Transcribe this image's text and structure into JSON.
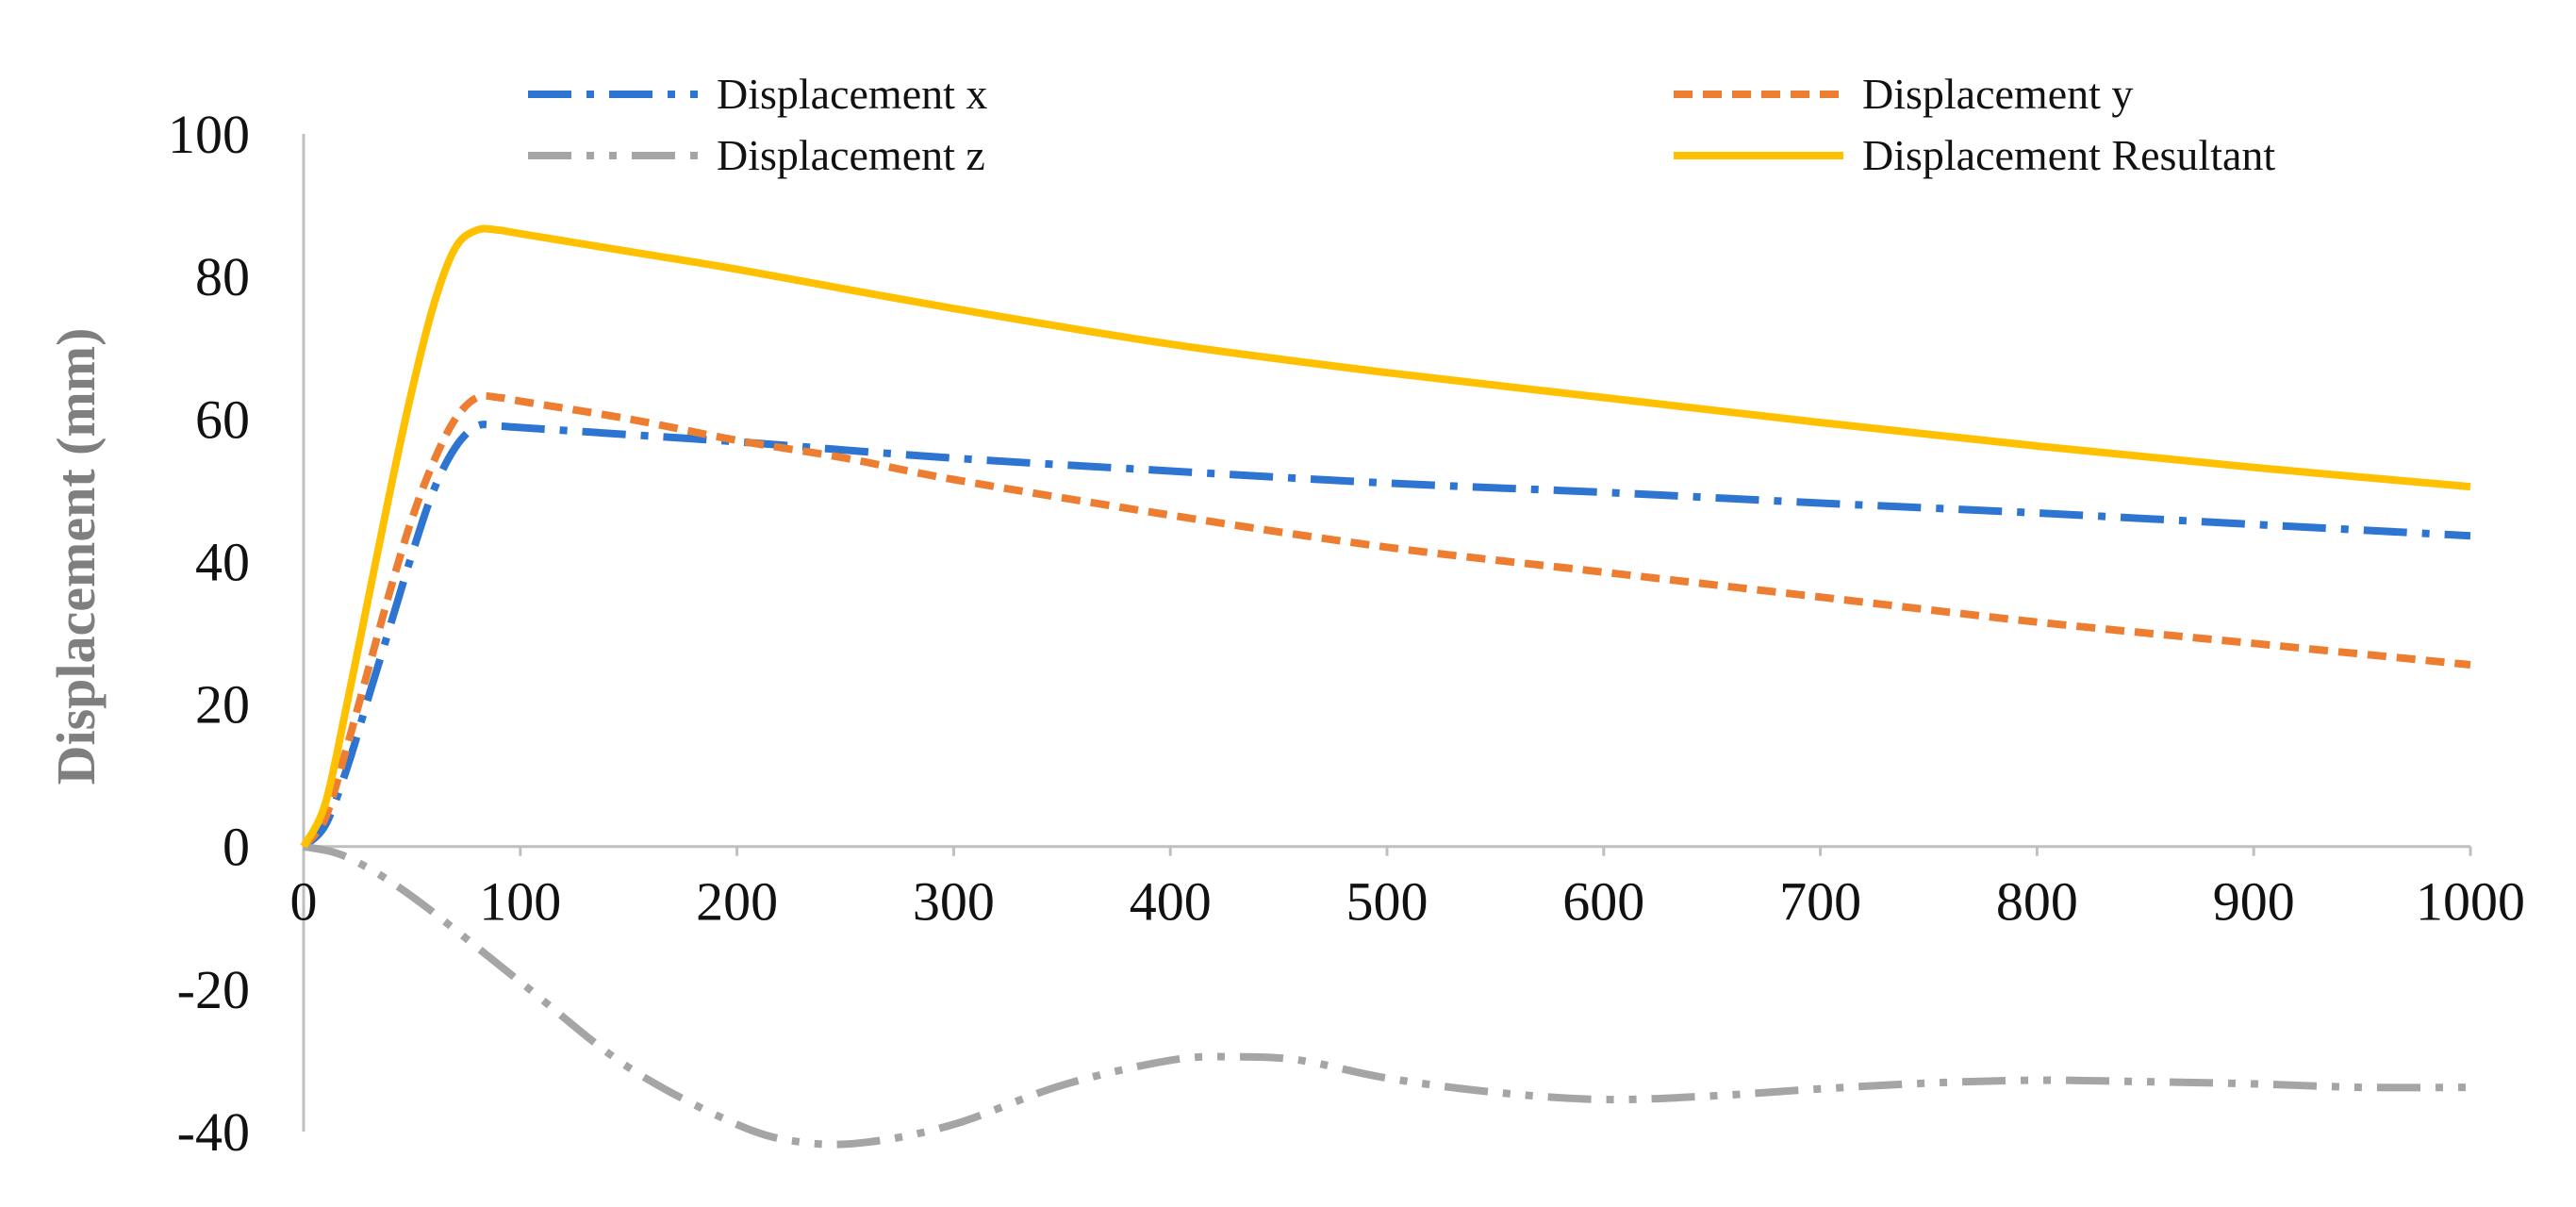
{
  "chart_data": {
    "type": "line",
    "title": "",
    "xlabel": "",
    "ylabel": "Displacement (mm)",
    "xlim": [
      0,
      1000
    ],
    "ylim": [
      -40,
      100
    ],
    "x_ticks": [
      0,
      100,
      200,
      300,
      400,
      500,
      600,
      700,
      800,
      900,
      1000
    ],
    "y_ticks": [
      -40,
      -20,
      0,
      20,
      40,
      60,
      80,
      100
    ],
    "x_tick_labels": [
      "0",
      "100",
      "200",
      "300",
      "400",
      "500",
      "600",
      "700",
      "800",
      "900",
      "1000"
    ],
    "y_tick_labels": [
      "-40",
      "-20",
      "0",
      "20",
      "40",
      "60",
      "80",
      "100"
    ],
    "grid": false,
    "legend_position": "top",
    "series": [
      {
        "name": "Displacement x",
        "color": "#2E75D2",
        "style": "dash-dot",
        "x": [
          0,
          10,
          20,
          30,
          40,
          50,
          60,
          70,
          80,
          90,
          100,
          150,
          200,
          300,
          400,
          500,
          600,
          700,
          800,
          900,
          1000
        ],
        "y": [
          0,
          3,
          11,
          21,
          31,
          41,
          50,
          56,
          59,
          59,
          58.8,
          57.8,
          56.8,
          54.5,
          52.7,
          51,
          49.7,
          48.2,
          46.8,
          45.2,
          43.6
        ]
      },
      {
        "name": "Displacement y",
        "color": "#ED7D31",
        "style": "dash",
        "x": [
          0,
          10,
          20,
          30,
          40,
          50,
          60,
          70,
          80,
          90,
          100,
          150,
          200,
          250,
          300,
          400,
          500,
          600,
          700,
          800,
          900,
          1000
        ],
        "y": [
          0,
          4,
          14,
          25,
          36,
          46,
          54,
          60,
          63,
          63,
          62.5,
          60,
          57,
          54.5,
          51.5,
          46.5,
          42,
          38.5,
          35,
          31.5,
          28.5,
          25.5
        ]
      },
      {
        "name": "Displacement z",
        "color": "#A5A5A5",
        "style": "dash-dot-dot",
        "x": [
          0,
          20,
          50,
          100,
          150,
          200,
          230,
          260,
          300,
          350,
          400,
          430,
          460,
          500,
          550,
          600,
          650,
          700,
          750,
          800,
          850,
          900,
          950,
          1000
        ],
        "y": [
          0,
          -1.5,
          -7,
          -19,
          -31,
          -39,
          -41.5,
          -41.5,
          -39,
          -33.5,
          -30,
          -29.5,
          -30,
          -32.5,
          -34.5,
          -35.5,
          -35,
          -34,
          -33.2,
          -32.8,
          -33,
          -33.3,
          -33.8,
          -33.8
        ]
      },
      {
        "name": "Displacement Resultant",
        "color": "#FFC000",
        "style": "solid",
        "x": [
          0,
          10,
          20,
          30,
          40,
          50,
          60,
          70,
          80,
          90,
          100,
          150,
          200,
          300,
          400,
          500,
          600,
          700,
          800,
          900,
          1000
        ],
        "y": [
          0,
          6,
          20,
          35,
          50,
          64,
          76,
          84,
          86.5,
          86.5,
          86,
          83.5,
          81,
          75.5,
          70.5,
          66.5,
          63,
          59.5,
          56.2,
          53.2,
          50.5
        ]
      }
    ]
  }
}
